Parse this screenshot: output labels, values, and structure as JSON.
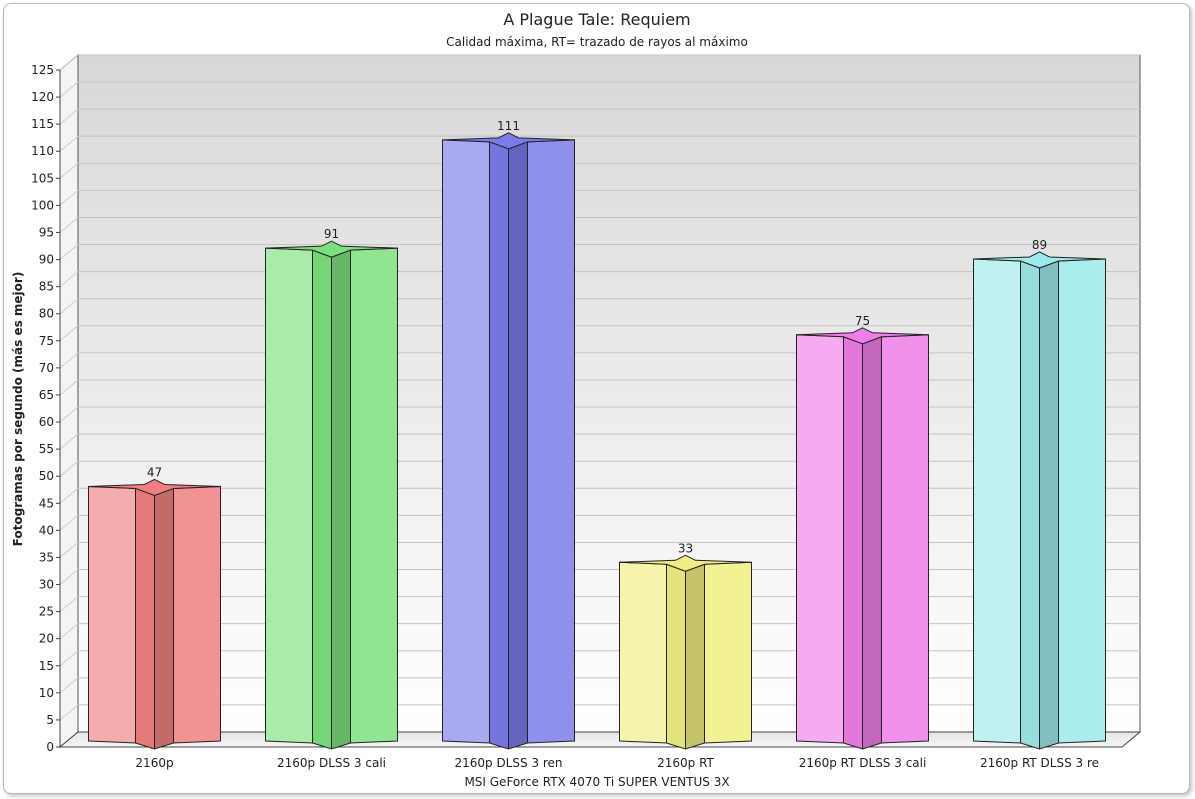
{
  "chart_data": {
    "type": "bar",
    "title": "A Plague Tale: Requiem",
    "subtitle": "Calidad máxima, RT= trazado de rayos al máximo",
    "xlabel": "MSI GeForce RTX 4070 Ti SUPER VENTUS 3X",
    "ylabel": "Fotogramas por segundo (más es mejor)",
    "ylim": [
      0,
      125
    ],
    "ytick_step": 5,
    "grid": true,
    "categories": [
      "2160p",
      "2160p DLSS 3 cali",
      "2160p DLSS 3 ren",
      "2160p RT",
      "2160p RT DLSS 3 cali",
      "2160p RT DLSS 3 re"
    ],
    "values": [
      47,
      91,
      111,
      33,
      75,
      89
    ],
    "colors": [
      "#f08080",
      "#7ce07c",
      "#7b7bea",
      "#f0ee80",
      "#ee7ee8",
      "#9ceaea"
    ]
  }
}
